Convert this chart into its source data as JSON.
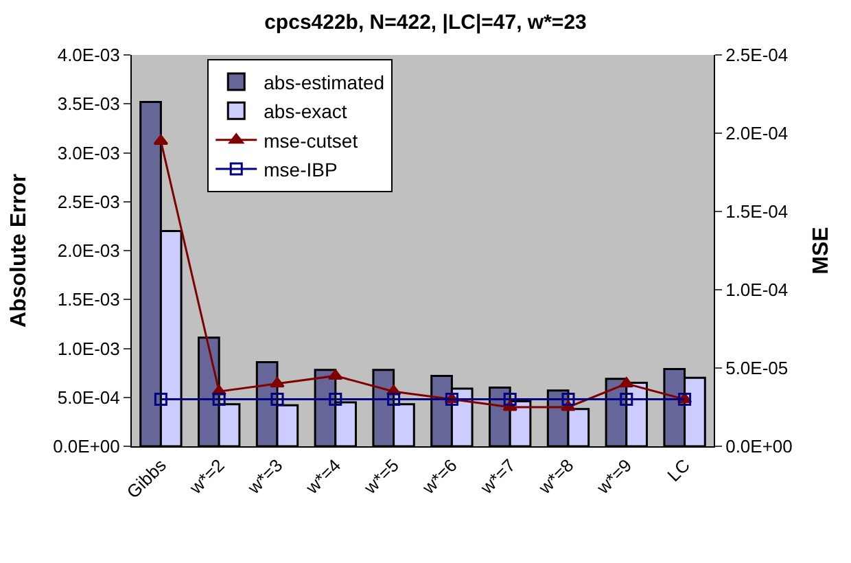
{
  "chart_data": {
    "type": "bar",
    "title": "cpcs422b, N=422, |LC|=47, w*=23",
    "ylabel": "Absolute Error",
    "y2label": "MSE",
    "categories": [
      "Gibbs",
      "w*=2",
      "w*=3",
      "w*=4",
      "w*=5",
      "w*=6",
      "w*=7",
      "w*=8",
      "w*=9",
      "LC"
    ],
    "series": [
      {
        "name": "abs-estimated",
        "color": "#666699",
        "values": [
          0.00352,
          0.00111,
          0.00086,
          0.00078,
          0.00078,
          0.00072,
          0.0006,
          0.00057,
          0.00069,
          0.00079
        ]
      },
      {
        "name": "abs-exact",
        "color": "#ccccff",
        "values": [
          0.0022,
          0.00043,
          0.00042,
          0.00045,
          0.00043,
          0.00059,
          0.00046,
          0.00038,
          0.00065,
          0.0007
        ]
      },
      {
        "name": "mse-cutset",
        "type": "line",
        "axis": "y2",
        "marker": "triangle",
        "color": "#800000",
        "values": [
          0.000195,
          3.5e-05,
          4e-05,
          4.5e-05,
          3.5e-05,
          3e-05,
          2.5e-05,
          2.5e-05,
          4e-05,
          3e-05
        ]
      },
      {
        "name": "mse-IBP",
        "type": "line",
        "axis": "y2",
        "marker": "square",
        "color": "#000080",
        "values": [
          3e-05,
          3e-05,
          3e-05,
          3e-05,
          3e-05,
          3e-05,
          3e-05,
          3e-05,
          3e-05,
          3e-05
        ]
      }
    ],
    "ylim": [
      0,
      0.004
    ],
    "yticks": [
      {
        "value": 0,
        "label": "0.0E+00"
      },
      {
        "value": 0.0005,
        "label": "5.0E-04"
      },
      {
        "value": 0.001,
        "label": "1.0E-03"
      },
      {
        "value": 0.0015,
        "label": "1.5E-03"
      },
      {
        "value": 0.002,
        "label": "2.0E-03"
      },
      {
        "value": 0.0025,
        "label": "2.5E-03"
      },
      {
        "value": 0.003,
        "label": "3.0E-03"
      },
      {
        "value": 0.0035,
        "label": "3.5E-03"
      },
      {
        "value": 0.004,
        "label": "4.0E-03"
      }
    ],
    "y2lim": [
      0,
      0.00025
    ],
    "y2ticks": [
      {
        "value": 0,
        "label": "0.0E+00"
      },
      {
        "value": 5e-05,
        "label": "5.0E-05"
      },
      {
        "value": 0.0001,
        "label": "1.0E-04"
      },
      {
        "value": 0.00015,
        "label": "1.5E-04"
      },
      {
        "value": 0.0002,
        "label": "2.0E-04"
      },
      {
        "value": 0.00025,
        "label": "2.5E-04"
      }
    ],
    "grid": false,
    "legend": "top left"
  }
}
